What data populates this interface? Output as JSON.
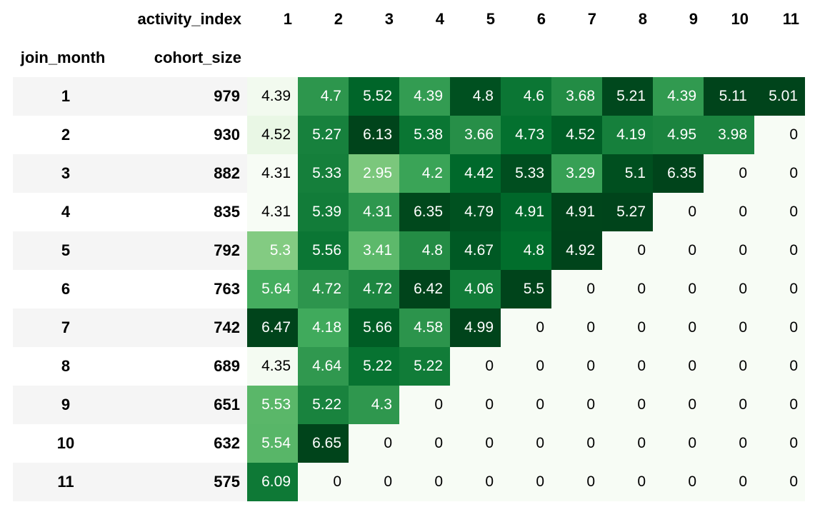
{
  "header": {
    "columns_label": "activity_index",
    "index_label_1": "join_month",
    "index_label_2": "cohort_size",
    "columns": [
      "1",
      "2",
      "3",
      "4",
      "5",
      "6",
      "7",
      "8",
      "9",
      "10",
      "11"
    ]
  },
  "rows": [
    {
      "join_month": "1",
      "cohort_size": "979",
      "values": [
        "4.39",
        "4.7",
        "5.52",
        "4.39",
        "4.8",
        "4.6",
        "3.68",
        "5.21",
        "4.39",
        "5.11",
        "5.01"
      ]
    },
    {
      "join_month": "2",
      "cohort_size": "930",
      "values": [
        "4.52",
        "5.27",
        "6.13",
        "5.38",
        "3.66",
        "4.73",
        "4.52",
        "4.19",
        "4.95",
        "3.98",
        "0"
      ]
    },
    {
      "join_month": "3",
      "cohort_size": "882",
      "values": [
        "4.31",
        "5.33",
        "2.95",
        "4.2",
        "4.42",
        "5.33",
        "3.29",
        "5.1",
        "6.35",
        "0",
        "0"
      ]
    },
    {
      "join_month": "4",
      "cohort_size": "835",
      "values": [
        "4.31",
        "5.39",
        "4.31",
        "6.35",
        "4.79",
        "4.91",
        "4.91",
        "5.27",
        "0",
        "0",
        "0"
      ]
    },
    {
      "join_month": "5",
      "cohort_size": "792",
      "values": [
        "5.3",
        "5.56",
        "3.41",
        "4.8",
        "4.67",
        "4.8",
        "4.92",
        "0",
        "0",
        "0",
        "0"
      ]
    },
    {
      "join_month": "6",
      "cohort_size": "763",
      "values": [
        "5.64",
        "4.72",
        "4.72",
        "6.42",
        "4.06",
        "5.5",
        "0",
        "0",
        "0",
        "0",
        "0"
      ]
    },
    {
      "join_month": "7",
      "cohort_size": "742",
      "values": [
        "6.47",
        "4.18",
        "5.66",
        "4.58",
        "4.99",
        "0",
        "0",
        "0",
        "0",
        "0",
        "0"
      ]
    },
    {
      "join_month": "8",
      "cohort_size": "689",
      "values": [
        "4.35",
        "4.64",
        "5.22",
        "5.22",
        "0",
        "0",
        "0",
        "0",
        "0",
        "0",
        "0"
      ]
    },
    {
      "join_month": "9",
      "cohort_size": "651",
      "values": [
        "5.53",
        "5.22",
        "4.3",
        "0",
        "0",
        "0",
        "0",
        "0",
        "0",
        "0",
        "0"
      ]
    },
    {
      "join_month": "10",
      "cohort_size": "632",
      "values": [
        "5.54",
        "6.65",
        "0",
        "0",
        "0",
        "0",
        "0",
        "0",
        "0",
        "0",
        "0"
      ]
    },
    {
      "join_month": "11",
      "cohort_size": "575",
      "values": [
        "6.09",
        "0",
        "0",
        "0",
        "0",
        "0",
        "0",
        "0",
        "0",
        "0",
        "0"
      ]
    }
  ],
  "colormap": {
    "name": "Greens",
    "light": "#f7fcf5",
    "dark": "#00441b",
    "text_light": "#ffffff",
    "text_dark": "#000000"
  }
}
